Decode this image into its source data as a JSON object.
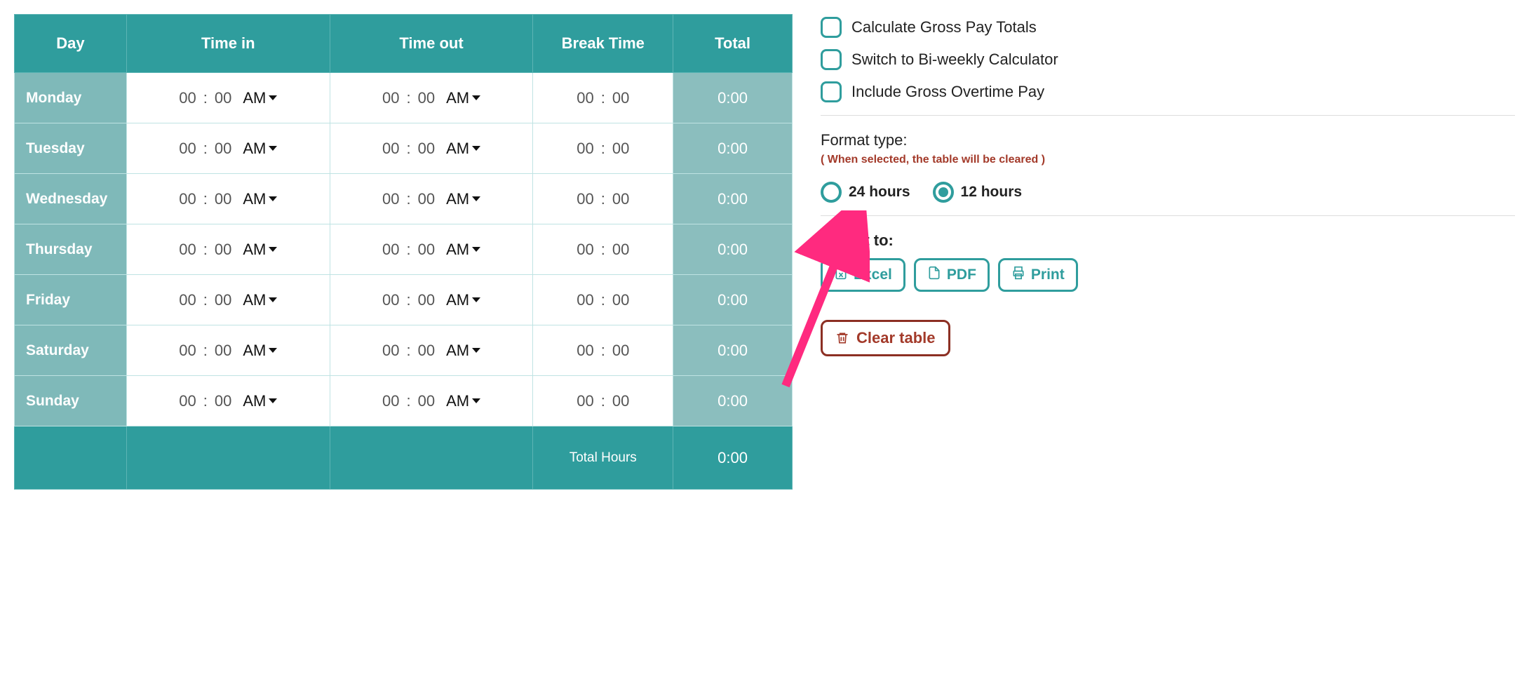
{
  "colors": {
    "header_bg": "#2f9d9d",
    "header_border": "#5db5b5",
    "day_bg": "#7fb9b9",
    "total_bg": "#8bbebe",
    "cell_border": "#bfe3e3",
    "accent": "#2f9d9d",
    "danger": "#a33a2a",
    "danger_border": "#8c2f23",
    "text": "#222222",
    "muted": "#555555",
    "white": "#ffffff"
  },
  "table": {
    "columns": [
      "Day",
      "Time in",
      "Time out",
      "Break Time",
      "Total"
    ],
    "rows": [
      {
        "day": "Monday",
        "in_h": "00",
        "in_m": "00",
        "in_ampm": "AM",
        "out_h": "00",
        "out_m": "00",
        "out_ampm": "AM",
        "break_h": "00",
        "break_m": "00",
        "total": "0:00"
      },
      {
        "day": "Tuesday",
        "in_h": "00",
        "in_m": "00",
        "in_ampm": "AM",
        "out_h": "00",
        "out_m": "00",
        "out_ampm": "AM",
        "break_h": "00",
        "break_m": "00",
        "total": "0:00"
      },
      {
        "day": "Wednesday",
        "in_h": "00",
        "in_m": "00",
        "in_ampm": "AM",
        "out_h": "00",
        "out_m": "00",
        "out_ampm": "AM",
        "break_h": "00",
        "break_m": "00",
        "total": "0:00"
      },
      {
        "day": "Thursday",
        "in_h": "00",
        "in_m": "00",
        "in_ampm": "AM",
        "out_h": "00",
        "out_m": "00",
        "out_ampm": "AM",
        "break_h": "00",
        "break_m": "00",
        "total": "0:00"
      },
      {
        "day": "Friday",
        "in_h": "00",
        "in_m": "00",
        "in_ampm": "AM",
        "out_h": "00",
        "out_m": "00",
        "out_ampm": "AM",
        "break_h": "00",
        "break_m": "00",
        "total": "0:00"
      },
      {
        "day": "Saturday",
        "in_h": "00",
        "in_m": "00",
        "in_ampm": "AM",
        "out_h": "00",
        "out_m": "00",
        "out_ampm": "AM",
        "break_h": "00",
        "break_m": "00",
        "total": "0:00"
      },
      {
        "day": "Sunday",
        "in_h": "00",
        "in_m": "00",
        "in_ampm": "AM",
        "out_h": "00",
        "out_m": "00",
        "out_ampm": "AM",
        "break_h": "00",
        "break_m": "00",
        "total": "0:00"
      }
    ],
    "footer_label": "Total Hours",
    "footer_total": "0:00"
  },
  "options": {
    "checkboxes": [
      {
        "label": "Calculate Gross Pay Totals",
        "checked": false
      },
      {
        "label": "Switch to Bi-weekly Calculator",
        "checked": false
      },
      {
        "label": "Include Gross Overtime Pay",
        "checked": false
      }
    ],
    "format_label": "Format type:",
    "format_warning": "( When selected, the table will be cleared )",
    "format_choices": [
      {
        "label": "24 hours",
        "selected": false
      },
      {
        "label": "12 hours",
        "selected": true
      }
    ],
    "export_label": "Export to:",
    "export_buttons": [
      {
        "label": "Excel",
        "icon": "file-excel"
      },
      {
        "label": "PDF",
        "icon": "file-pdf"
      },
      {
        "label": "Print",
        "icon": "printer"
      }
    ],
    "clear_label": "Clear table"
  },
  "annotation": {
    "arrow_color": "#ff2a7f"
  }
}
